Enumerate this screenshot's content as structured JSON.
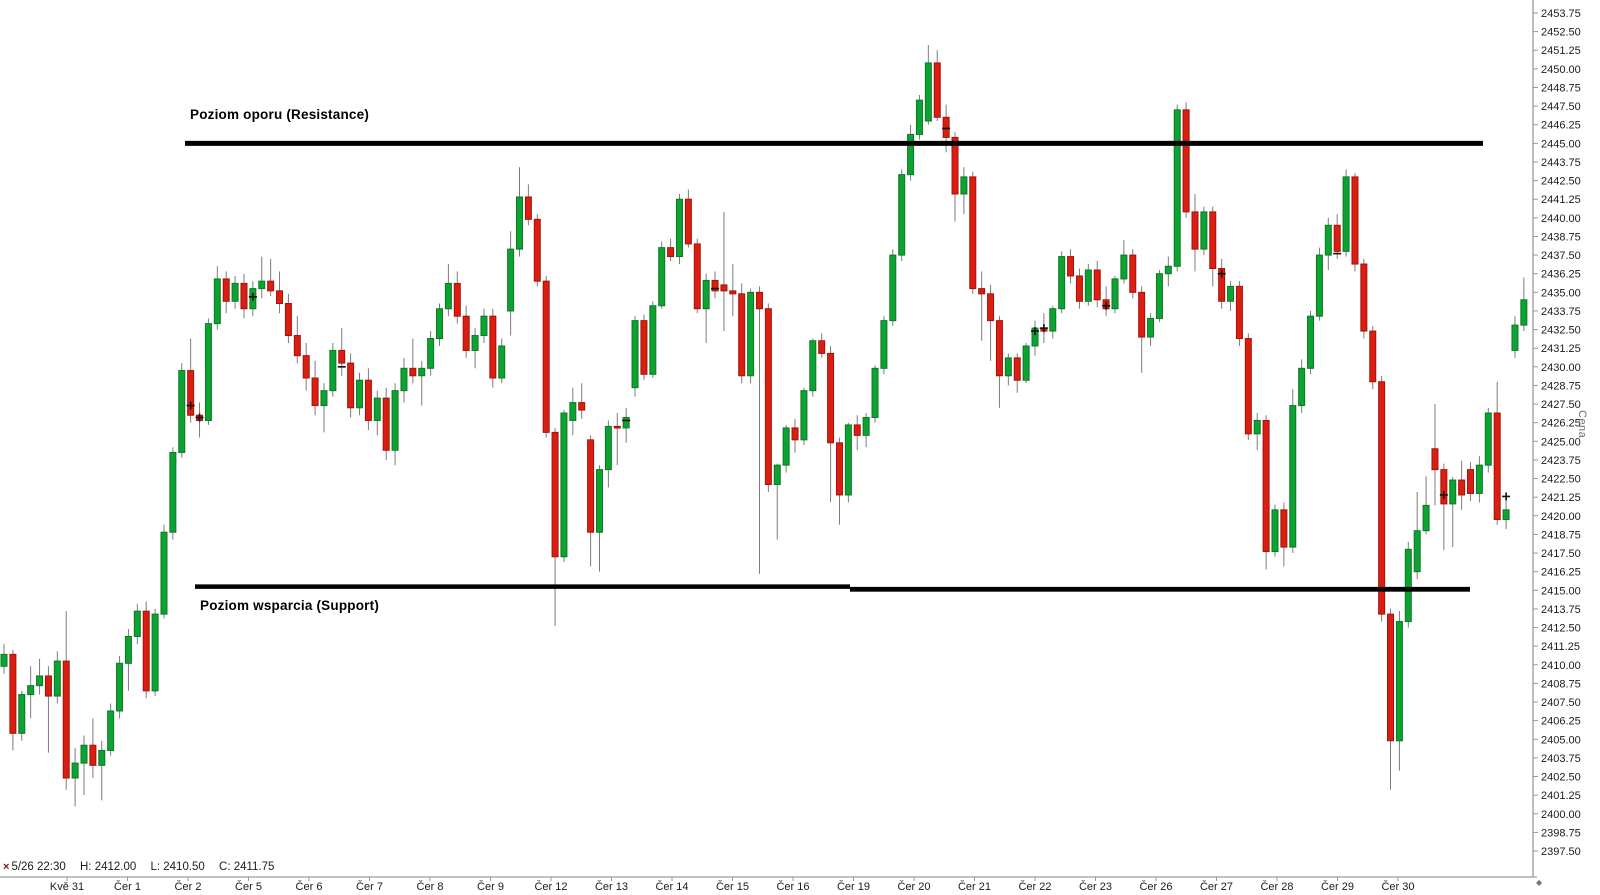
{
  "chart_data": {
    "type": "candlestick",
    "ylabel": "Cena",
    "price_axis": {
      "min": 2397.5,
      "max": 2453.75,
      "step": 1.25
    },
    "x_labels": [
      "Kvě 31",
      "Čer 1",
      "Čer 2",
      "Čer 5",
      "Čer 6",
      "Čer 7",
      "Čer 8",
      "Čer 9",
      "Čer 12",
      "Čer 13",
      "Čer 14",
      "Čer 15",
      "Čer 16",
      "Čer 19",
      "Čer 20",
      "Čer 21",
      "Čer 22",
      "Čer 23",
      "Čer 26",
      "Čer 27",
      "Čer 28",
      "Čer 29",
      "Čer 30"
    ],
    "annotations": {
      "resistance": {
        "label": "Poziom oporu (Resistance)",
        "level": 2445.0
      },
      "support": {
        "label": "Poziom wsparcia (Support)",
        "level": 2415.25
      }
    },
    "status_bar": {
      "marker": "×",
      "timestamp": "5/26 22:30",
      "high": "H: 2412.00",
      "low": "L: 2410.50",
      "close": "C: 2411.75"
    },
    "corner_icon": "◆",
    "colors": {
      "up": "#0ea233",
      "up_border": "#0a7a25",
      "down": "#da1f12",
      "down_border": "#a41208",
      "wick": "#7c7c7c",
      "axis": "#9a9a9a",
      "text": "#1b1b1b",
      "muted_text": "#6e6e6e",
      "level_line": "#000000",
      "marker": "#111111"
    },
    "candles": [
      [
        2409.9,
        2411.4,
        2409.4,
        2410.7
      ],
      [
        2410.7,
        2411.0,
        2404.25,
        2405.4
      ],
      [
        2405.4,
        2408.25,
        2404.9,
        2408.0
      ],
      [
        2408.0,
        2409.9,
        2406.4,
        2408.6
      ],
      [
        2408.6,
        2410.4,
        2408.0,
        2409.25
      ],
      [
        2409.25,
        2409.9,
        2404.1,
        2407.9
      ],
      [
        2407.9,
        2410.9,
        2407.4,
        2410.25
      ],
      [
        2410.25,
        2413.6,
        2401.6,
        2402.4
      ],
      [
        2402.4,
        2404.4,
        2400.5,
        2403.4
      ],
      [
        2403.4,
        2405.25,
        2401.25,
        2404.6
      ],
      [
        2404.6,
        2406.4,
        2402.4,
        2403.25
      ],
      [
        2403.25,
        2404.9,
        2400.9,
        2404.25
      ],
      [
        2404.25,
        2407.4,
        2403.9,
        2406.9
      ],
      [
        2406.9,
        2410.6,
        2406.4,
        2410.1
      ],
      [
        2410.1,
        2412.4,
        2408.25,
        2411.9
      ],
      [
        2411.9,
        2414.1,
        2411.4,
        2413.6
      ],
      [
        2413.6,
        2414.25,
        2407.75,
        2408.25
      ],
      [
        2408.25,
        2413.75,
        2407.9,
        2413.4
      ],
      [
        2413.4,
        2419.4,
        2413.1,
        2418.9
      ],
      [
        2418.9,
        2424.6,
        2418.4,
        2424.25
      ],
      [
        2424.25,
        2430.25,
        2423.9,
        2429.75
      ],
      [
        2429.75,
        2431.9,
        2426.25,
        2426.75
      ],
      [
        2426.75,
        2427.6,
        2425.25,
        2426.4
      ],
      [
        2426.4,
        2433.25,
        2426.1,
        2432.9
      ],
      [
        2432.9,
        2436.75,
        2432.5,
        2435.9
      ],
      [
        2435.9,
        2436.4,
        2433.6,
        2434.4
      ],
      [
        2434.4,
        2436.1,
        2433.9,
        2435.6
      ],
      [
        2435.6,
        2436.25,
        2433.25,
        2433.9
      ],
      [
        2433.9,
        2435.75,
        2433.4,
        2435.25
      ],
      [
        2435.25,
        2437.4,
        2434.6,
        2435.75
      ],
      [
        2435.75,
        2437.25,
        2434.75,
        2435.1
      ],
      [
        2435.1,
        2436.4,
        2433.6,
        2434.25
      ],
      [
        2434.25,
        2434.9,
        2431.6,
        2432.1
      ],
      [
        2432.1,
        2433.4,
        2430.25,
        2430.75
      ],
      [
        2430.75,
        2431.6,
        2428.4,
        2429.25
      ],
      [
        2429.25,
        2430.4,
        2426.75,
        2427.4
      ],
      [
        2427.4,
        2428.9,
        2425.6,
        2428.4
      ],
      [
        2428.4,
        2431.6,
        2428.0,
        2431.1
      ],
      [
        2431.1,
        2432.6,
        2429.4,
        2430.25
      ],
      [
        2430.25,
        2430.9,
        2426.6,
        2427.25
      ],
      [
        2427.25,
        2429.6,
        2426.75,
        2429.1
      ],
      [
        2429.1,
        2429.9,
        2425.75,
        2426.4
      ],
      [
        2426.4,
        2428.4,
        2425.4,
        2427.9
      ],
      [
        2427.9,
        2428.6,
        2423.75,
        2424.4
      ],
      [
        2424.4,
        2428.9,
        2423.4,
        2428.4
      ],
      [
        2428.4,
        2430.6,
        2427.6,
        2429.9
      ],
      [
        2429.9,
        2431.9,
        2428.9,
        2429.4
      ],
      [
        2429.4,
        2430.4,
        2427.4,
        2429.9
      ],
      [
        2429.9,
        2432.4,
        2429.4,
        2431.9
      ],
      [
        2431.9,
        2434.25,
        2431.4,
        2433.9
      ],
      [
        2433.9,
        2436.9,
        2433.4,
        2435.6
      ],
      [
        2435.6,
        2436.4,
        2432.9,
        2433.4
      ],
      [
        2433.4,
        2434.1,
        2430.6,
        2431.1
      ],
      [
        2431.1,
        2432.6,
        2429.9,
        2432.1
      ],
      [
        2432.1,
        2433.9,
        2431.6,
        2433.4
      ],
      [
        2433.4,
        2433.9,
        2428.6,
        2429.25
      ],
      [
        2429.25,
        2431.9,
        2428.9,
        2431.4
      ],
      [
        2433.75,
        2439.1,
        2432.1,
        2437.9
      ],
      [
        2437.9,
        2443.4,
        2437.4,
        2441.4
      ],
      [
        2441.4,
        2442.25,
        2439.5,
        2439.9
      ],
      [
        2439.9,
        2440.25,
        2435.4,
        2435.75
      ],
      [
        2435.75,
        2436.1,
        2425.25,
        2425.6
      ],
      [
        2425.6,
        2425.9,
        2412.6,
        2417.25
      ],
      [
        2417.25,
        2427.1,
        2416.9,
        2426.9
      ],
      [
        2426.4,
        2428.6,
        2425.4,
        2427.6
      ],
      [
        2427.6,
        2428.9,
        2426.5,
        2427.1
      ],
      [
        2425.1,
        2425.4,
        2416.6,
        2418.9
      ],
      [
        2418.9,
        2423.4,
        2416.25,
        2423.1
      ],
      [
        2423.1,
        2426.4,
        2421.9,
        2426.0
      ],
      [
        2426.0,
        2426.9,
        2423.4,
        2425.9
      ],
      [
        2425.9,
        2427.25,
        2424.9,
        2426.6
      ],
      [
        2428.6,
        2433.4,
        2428.0,
        2433.1
      ],
      [
        2433.1,
        2433.5,
        2429.1,
        2429.5
      ],
      [
        2429.5,
        2434.4,
        2429.25,
        2434.1
      ],
      [
        2434.1,
        2438.4,
        2433.9,
        2438.0
      ],
      [
        2438.0,
        2438.6,
        2437.1,
        2437.4
      ],
      [
        2437.4,
        2441.6,
        2436.9,
        2441.25
      ],
      [
        2441.25,
        2441.9,
        2438.0,
        2438.25
      ],
      [
        2438.25,
        2438.6,
        2433.6,
        2433.9
      ],
      [
        2433.9,
        2436.25,
        2431.6,
        2435.8
      ],
      [
        2435.8,
        2436.4,
        2434.6,
        2435.1
      ],
      [
        2435.5,
        2440.4,
        2432.4,
        2435.1
      ],
      [
        2435.1,
        2436.9,
        2433.4,
        2434.9
      ],
      [
        2434.9,
        2435.6,
        2428.9,
        2429.4
      ],
      [
        2429.4,
        2435.25,
        2428.9,
        2435.0
      ],
      [
        2435.0,
        2435.4,
        2416.1,
        2433.9
      ],
      [
        2433.9,
        2434.25,
        2421.6,
        2422.1
      ],
      [
        2422.1,
        2423.5,
        2418.4,
        2423.4
      ],
      [
        2423.4,
        2426.1,
        2422.9,
        2425.9
      ],
      [
        2425.9,
        2426.5,
        2424.25,
        2425.1
      ],
      [
        2425.1,
        2428.6,
        2424.75,
        2428.4
      ],
      [
        2428.4,
        2431.9,
        2428.0,
        2431.75
      ],
      [
        2431.75,
        2432.25,
        2430.6,
        2430.9
      ],
      [
        2430.9,
        2431.4,
        2420.9,
        2424.9
      ],
      [
        2424.9,
        2425.25,
        2419.4,
        2421.4
      ],
      [
        2421.4,
        2426.25,
        2420.9,
        2426.1
      ],
      [
        2426.1,
        2426.75,
        2424.4,
        2425.4
      ],
      [
        2425.4,
        2426.9,
        2424.6,
        2426.6
      ],
      [
        2426.6,
        2430.1,
        2426.25,
        2429.9
      ],
      [
        2429.9,
        2433.4,
        2429.5,
        2433.1
      ],
      [
        2433.1,
        2437.9,
        2432.75,
        2437.5
      ],
      [
        2437.5,
        2443.25,
        2437.1,
        2442.9
      ],
      [
        2442.9,
        2446.25,
        2442.5,
        2445.6
      ],
      [
        2445.6,
        2448.25,
        2445.25,
        2447.9
      ],
      [
        2446.5,
        2451.6,
        2446.25,
        2450.4
      ],
      [
        2450.4,
        2451.25,
        2446.5,
        2446.75
      ],
      [
        2446.75,
        2447.6,
        2444.4,
        2445.4
      ],
      [
        2445.4,
        2445.75,
        2439.75,
        2441.6
      ],
      [
        2441.6,
        2443.4,
        2440.25,
        2442.75
      ],
      [
        2442.75,
        2443.1,
        2434.9,
        2435.25
      ],
      [
        2435.25,
        2436.4,
        2431.75,
        2434.9
      ],
      [
        2434.9,
        2435.5,
        2430.4,
        2433.1
      ],
      [
        2433.1,
        2433.4,
        2427.25,
        2429.4
      ],
      [
        2429.4,
        2430.9,
        2428.75,
        2430.6
      ],
      [
        2430.6,
        2430.9,
        2428.25,
        2429.1
      ],
      [
        2429.1,
        2431.6,
        2428.9,
        2431.4
      ],
      [
        2431.4,
        2433.1,
        2430.75,
        2432.6
      ],
      [
        2432.6,
        2433.6,
        2431.6,
        2432.4
      ],
      [
        2432.4,
        2434.1,
        2431.9,
        2433.9
      ],
      [
        2433.9,
        2437.75,
        2433.6,
        2437.4
      ],
      [
        2437.4,
        2437.9,
        2435.6,
        2436.1
      ],
      [
        2436.1,
        2436.6,
        2433.9,
        2434.4
      ],
      [
        2434.4,
        2436.9,
        2434.1,
        2436.5
      ],
      [
        2436.5,
        2437.1,
        2434.0,
        2434.5
      ],
      [
        2434.5,
        2435.4,
        2433.4,
        2433.9
      ],
      [
        2433.9,
        2436.1,
        2433.6,
        2435.9
      ],
      [
        2435.9,
        2438.5,
        2435.6,
        2437.5
      ],
      [
        2437.5,
        2437.9,
        2434.6,
        2435.0
      ],
      [
        2435.0,
        2435.4,
        2429.6,
        2432.0
      ],
      [
        2432.0,
        2433.6,
        2431.4,
        2433.25
      ],
      [
        2433.25,
        2436.5,
        2433.0,
        2436.25
      ],
      [
        2436.25,
        2437.4,
        2435.4,
        2436.75
      ],
      [
        2436.75,
        2447.6,
        2436.4,
        2447.25
      ],
      [
        2447.25,
        2447.75,
        2440.0,
        2440.4
      ],
      [
        2440.4,
        2441.6,
        2436.4,
        2437.9
      ],
      [
        2437.9,
        2440.75,
        2437.5,
        2440.4
      ],
      [
        2440.4,
        2440.75,
        2435.4,
        2436.6
      ],
      [
        2436.6,
        2437.25,
        2433.9,
        2434.4
      ],
      [
        2434.4,
        2435.75,
        2433.75,
        2435.4
      ],
      [
        2435.4,
        2435.75,
        2431.4,
        2431.9
      ],
      [
        2431.9,
        2432.25,
        2425.1,
        2425.5
      ],
      [
        2425.5,
        2426.9,
        2424.4,
        2426.4
      ],
      [
        2426.4,
        2426.75,
        2416.4,
        2417.6
      ],
      [
        2417.6,
        2420.75,
        2417.25,
        2420.4
      ],
      [
        2420.4,
        2420.9,
        2416.6,
        2417.9
      ],
      [
        2417.9,
        2428.5,
        2417.5,
        2427.4
      ],
      [
        2427.4,
        2430.5,
        2426.9,
        2429.9
      ],
      [
        2429.9,
        2433.75,
        2429.5,
        2433.4
      ],
      [
        2433.4,
        2438.0,
        2433.1,
        2437.5
      ],
      [
        2437.5,
        2440.0,
        2436.5,
        2439.5
      ],
      [
        2439.5,
        2440.25,
        2437.25,
        2437.75
      ],
      [
        2437.75,
        2443.25,
        2437.4,
        2442.75
      ],
      [
        2442.75,
        2443.0,
        2436.4,
        2436.9
      ],
      [
        2436.9,
        2437.25,
        2431.9,
        2432.4
      ],
      [
        2432.4,
        2432.75,
        2428.5,
        2429.0
      ],
      [
        2429.0,
        2429.4,
        2412.9,
        2413.4
      ],
      [
        2413.4,
        2413.75,
        2401.6,
        2404.9
      ],
      [
        2404.9,
        2413.6,
        2402.9,
        2412.9
      ],
      [
        2412.9,
        2418.25,
        2412.5,
        2417.75
      ],
      [
        2416.25,
        2421.6,
        2415.75,
        2419.0
      ],
      [
        2419.0,
        2422.65,
        2418.75,
        2420.7
      ],
      [
        2424.5,
        2427.5,
        2420.7,
        2423.1
      ],
      [
        2423.1,
        2423.5,
        2417.7,
        2420.8
      ],
      [
        2420.8,
        2422.6,
        2417.9,
        2422.4
      ],
      [
        2422.4,
        2423.7,
        2420.4,
        2421.4
      ],
      [
        2423.1,
        2423.6,
        2421.0,
        2421.5
      ],
      [
        2421.5,
        2424.0,
        2420.9,
        2423.4
      ],
      [
        2423.4,
        2427.25,
        2422.9,
        2426.9
      ],
      [
        2426.9,
        2429.0,
        2419.4,
        2419.75
      ],
      [
        2419.75,
        2421.3,
        2419.1,
        2420.4
      ],
      [
        2431.1,
        2433.4,
        2430.6,
        2432.8
      ],
      [
        2432.8,
        2436.0,
        2432.4,
        2434.5
      ]
    ],
    "markers": [
      {
        "i": 21,
        "p": 2427.4,
        "t": "plus"
      },
      {
        "i": 22,
        "p": 2426.6,
        "t": "plus"
      },
      {
        "i": 28,
        "p": 2434.7,
        "t": "plus"
      },
      {
        "i": 38,
        "p": 2430.0,
        "t": "dash"
      },
      {
        "i": 70,
        "p": 2426.4,
        "t": "dash"
      },
      {
        "i": 80,
        "p": 2435.25,
        "t": "dash"
      },
      {
        "i": 106,
        "p": 2446.0,
        "t": "dash"
      },
      {
        "i": 116,
        "p": 2432.4,
        "t": "plus"
      },
      {
        "i": 117,
        "p": 2432.6,
        "t": "plus"
      },
      {
        "i": 124,
        "p": 2434.1,
        "t": "plus"
      },
      {
        "i": 137,
        "p": 2436.25,
        "t": "plus"
      },
      {
        "i": 150,
        "p": 2437.6,
        "t": "dash"
      },
      {
        "i": 162,
        "p": 2421.4,
        "t": "plus"
      },
      {
        "i": 169,
        "p": 2421.3,
        "t": "plus"
      }
    ]
  }
}
